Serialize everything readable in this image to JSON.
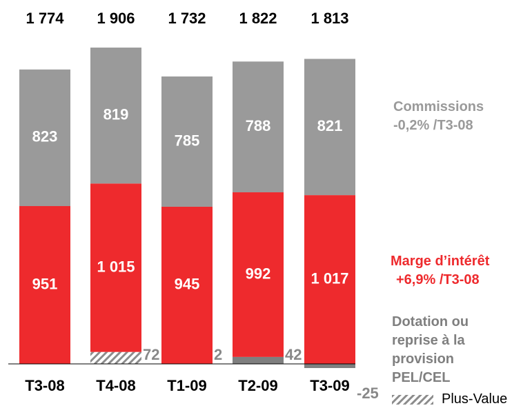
{
  "chart_data": {
    "type": "bar",
    "stacked": true,
    "categories": [
      "T3-08",
      "T4-08",
      "T1-09",
      "T2-09",
      "T3-09"
    ],
    "ylim": [
      -250,
      2150
    ],
    "totals": {
      "values": [
        1774,
        1906,
        1732,
        1822,
        1813
      ],
      "value_labels": [
        "1 774",
        "1 906",
        "1 732",
        "1 822",
        "1 813"
      ]
    },
    "series": [
      {
        "name": "Dotation ou reprise à la provision PEL/CEL",
        "color": "#7f7f7f",
        "values": [
          null,
          null,
          2,
          42,
          -25
        ]
      },
      {
        "name": "Plus-Value",
        "color": "#8c8c8c",
        "hatch": true,
        "values": [
          null,
          72,
          null,
          null,
          null
        ]
      },
      {
        "name": "Marge d’intérêt",
        "note": "+6,9% /T3-08",
        "color": "#ee2a2d",
        "values": [
          951,
          1015,
          945,
          992,
          1017
        ],
        "value_labels": [
          "951",
          "1 015",
          "945",
          "992",
          "1 017"
        ]
      },
      {
        "name": "Commissions",
        "note": "-0,2% /T3-08",
        "color": "#9a9a9a",
        "values": [
          823,
          819,
          785,
          788,
          821
        ]
      }
    ]
  }
}
